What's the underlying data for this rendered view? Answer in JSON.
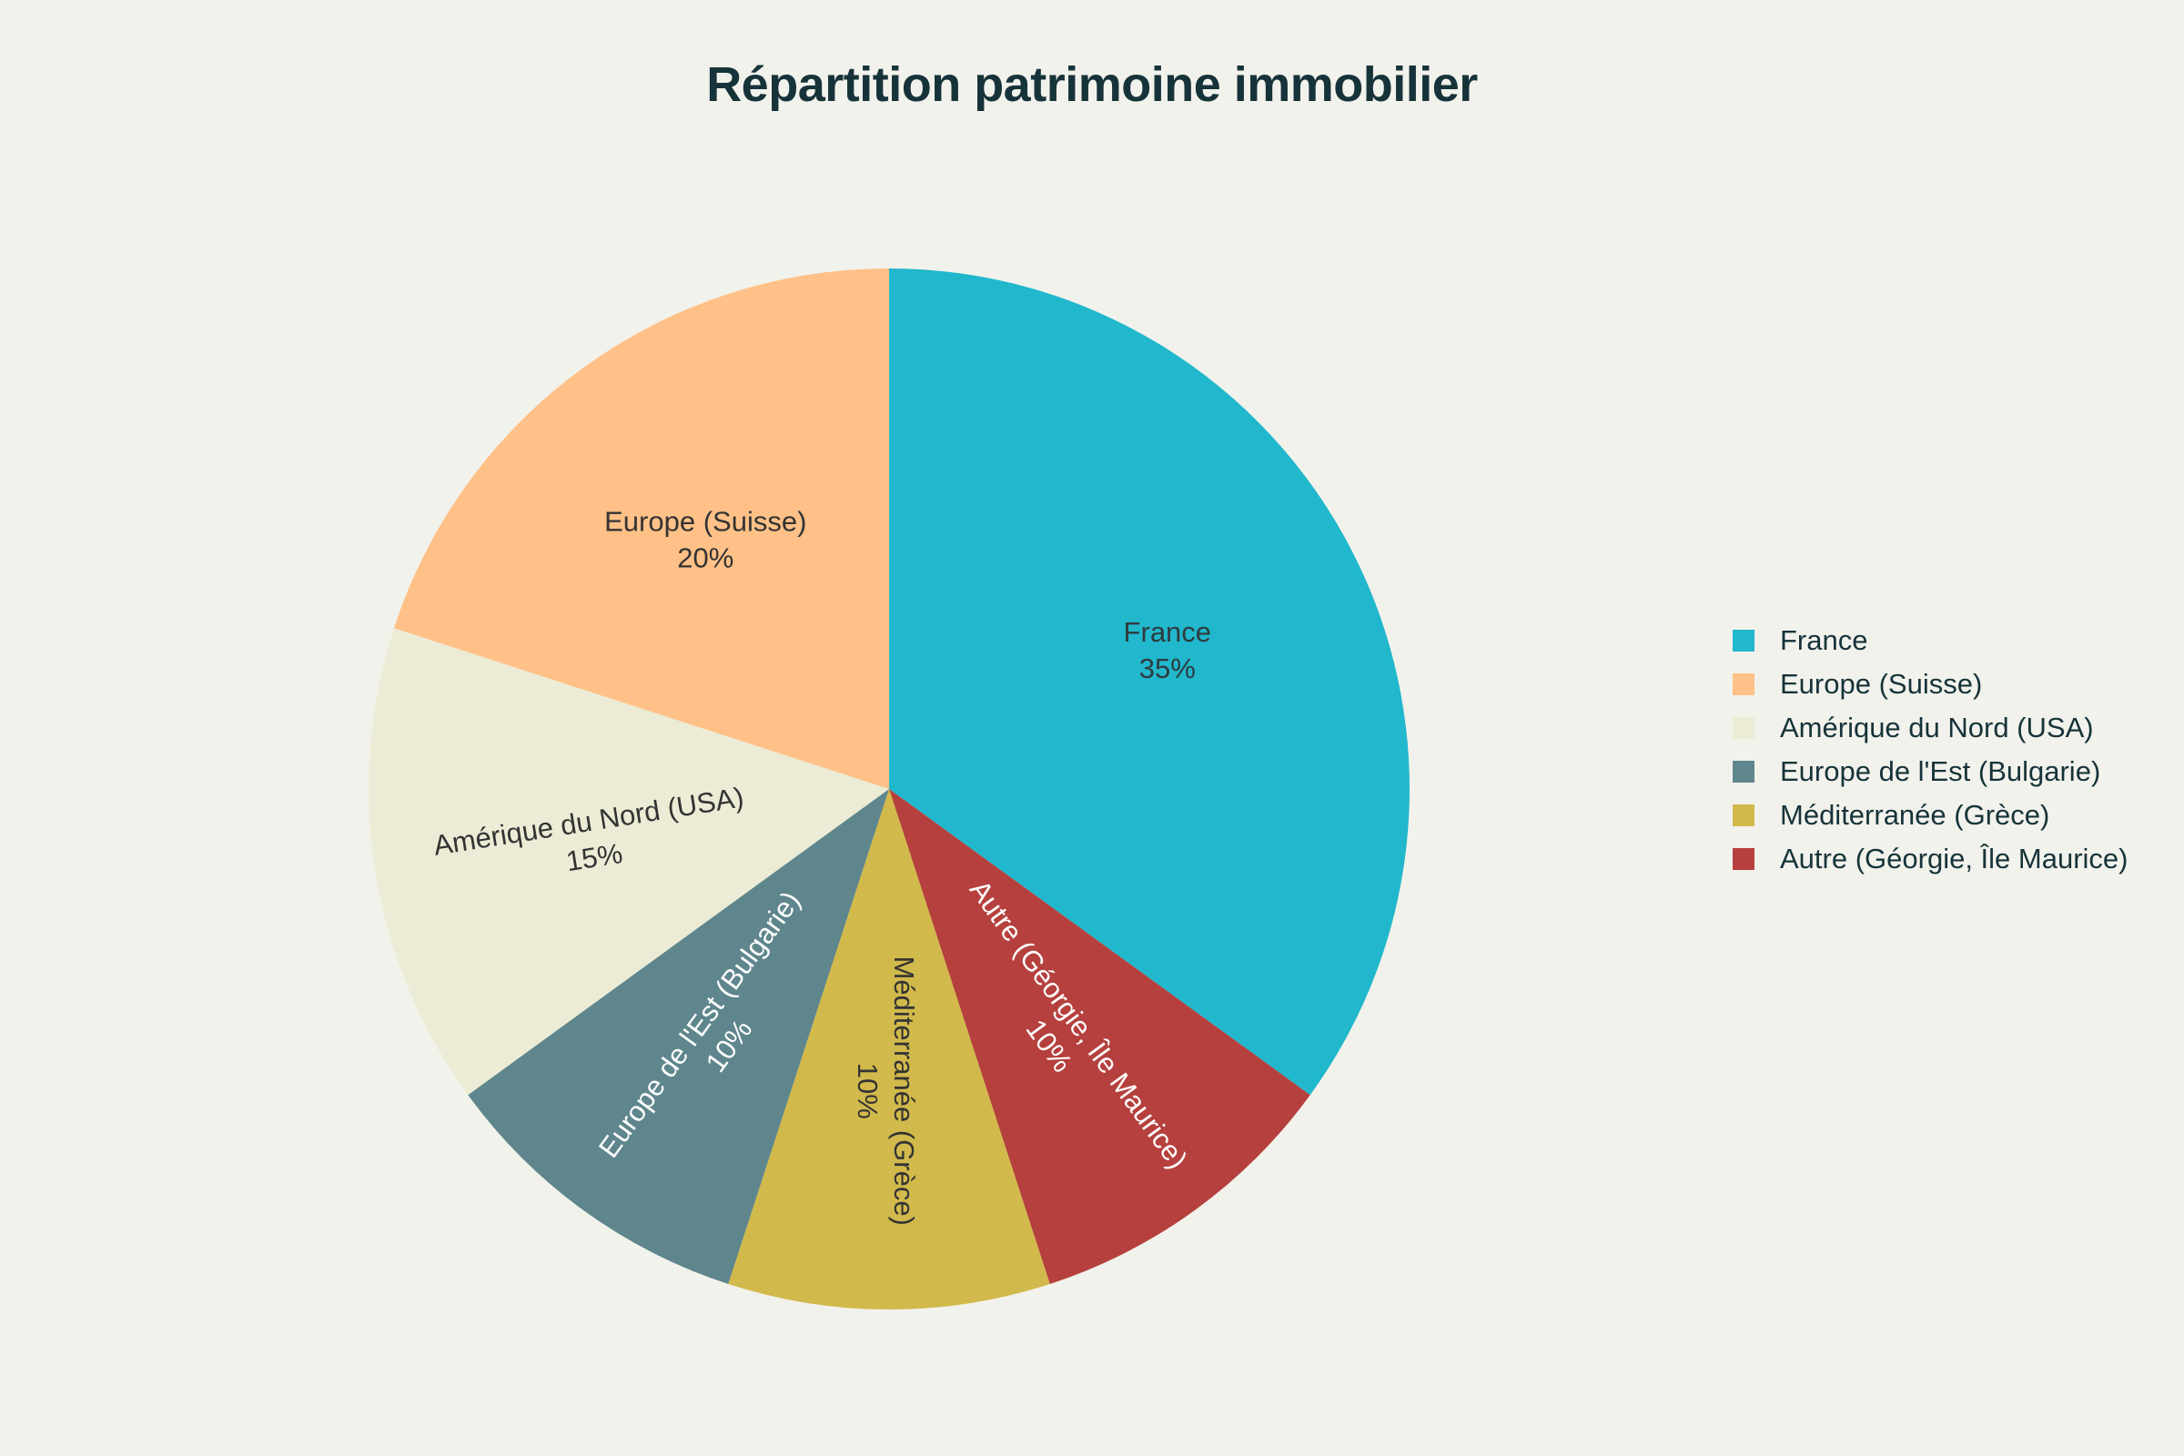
{
  "chart_data": {
    "type": "pie",
    "title": "Répartition patrimoine immobilier",
    "legend_position": "right",
    "start_angle": "12 o'clock",
    "direction": "clockwise",
    "slices": [
      {
        "label": "France",
        "value": 35,
        "value_label": "35%",
        "color": "#21b7cc",
        "text_color": "#2f3b3f",
        "rotated": false
      },
      {
        "label": "Autre (Géorgie, Île Maurice)",
        "value": 10,
        "value_label": "10%",
        "color": "#b5403d",
        "text_color": "#ffffff",
        "rotated": true
      },
      {
        "label": "Méditerranée (Grèce)",
        "value": 10,
        "value_label": "10%",
        "color": "#d1b94b",
        "text_color": "#333333",
        "rotated": true
      },
      {
        "label": "Europe de l'Est (Bulgarie)",
        "value": 10,
        "value_label": "10%",
        "color": "#5e868c",
        "text_color": "#ffffff",
        "rotated": true
      },
      {
        "label": "Amérique du Nord (USA)",
        "value": 15,
        "value_label": "15%",
        "color": "#ececd6",
        "text_color": "#333333",
        "rotated": true
      },
      {
        "label": "Europe (Suisse)",
        "value": 20,
        "value_label": "20%",
        "color": "#ffc187",
        "text_color": "#333333",
        "rotated": false
      }
    ],
    "legend": [
      {
        "label": "France",
        "color": "#21b7cc"
      },
      {
        "label": "Europe (Suisse)",
        "color": "#ffc187"
      },
      {
        "label": "Amérique du Nord (USA)",
        "color": "#ececd6"
      },
      {
        "label": "Europe de l'Est (Bulgarie)",
        "color": "#5e868c"
      },
      {
        "label": "Méditerranée (Grèce)",
        "color": "#d1b94b"
      },
      {
        "label": "Autre (Géorgie, Île Maurice)",
        "color": "#b5403d"
      }
    ]
  }
}
